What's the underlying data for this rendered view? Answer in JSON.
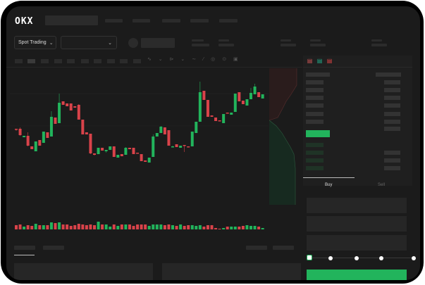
{
  "header": {
    "logo": "OKX"
  },
  "controls": {
    "market_selector": "Spot Trading",
    "pair_selector": ""
  },
  "orderbook": {
    "view_icons": [
      "orderbook-both-icon",
      "orderbook-buy-icon",
      "orderbook-sell-icon"
    ]
  },
  "trade_panel": {
    "tabs": [
      {
        "label": "Buy"
      },
      {
        "label": "Sell"
      }
    ],
    "slider_percent": 0,
    "submit_color": "#22b45c"
  },
  "colors": {
    "up": "#22b45c",
    "down": "#d9434a",
    "background": "#1b1b1b"
  },
  "chart_data": {
    "type": "candlestick",
    "candles": [
      [
        118,
        117,
        118,
        115
      ],
      [
        118,
        109,
        120,
        108
      ],
      [
        106,
        108,
        108,
        106
      ],
      [
        108,
        94,
        113,
        93
      ],
      [
        93,
        89,
        93,
        89
      ],
      [
        86,
        100,
        100,
        86
      ],
      [
        102,
        94,
        102,
        94
      ],
      [
        98,
        114,
        114,
        98
      ],
      [
        113,
        105,
        113,
        105
      ],
      [
        107,
        135,
        143,
        107
      ],
      [
        134,
        125,
        134,
        125
      ],
      [
        126,
        155,
        168,
        126
      ],
      [
        157,
        152,
        157,
        152
      ],
      [
        154,
        150,
        154,
        150
      ],
      [
        154,
        144,
        154,
        144
      ],
      [
        150,
        148,
        150,
        148
      ],
      [
        152,
        131,
        153,
        131
      ],
      [
        131,
        110,
        131,
        110
      ],
      [
        113,
        110,
        113,
        110
      ],
      [
        111,
        83,
        111,
        82
      ],
      [
        83,
        81,
        83,
        80
      ],
      [
        82,
        91,
        91,
        82
      ],
      [
        91,
        87,
        91,
        87
      ],
      [
        86,
        88,
        88,
        84
      ],
      [
        88,
        93,
        93,
        88
      ],
      [
        93,
        78,
        93,
        78
      ],
      [
        77,
        81,
        81,
        77
      ],
      [
        82,
        79,
        82,
        79
      ],
      [
        81,
        91,
        92,
        81
      ],
      [
        91,
        89,
        91,
        89
      ],
      [
        91,
        82,
        91,
        82
      ],
      [
        84,
        83,
        84,
        83
      ],
      [
        82,
        72,
        82,
        72
      ],
      [
        73,
        71,
        73,
        71
      ],
      [
        70,
        77,
        77,
        70
      ],
      [
        78,
        107,
        110,
        78
      ],
      [
        107,
        112,
        112,
        107
      ],
      [
        112,
        121,
        122,
        112
      ],
      [
        120,
        110,
        120,
        110
      ],
      [
        116,
        94,
        116,
        94
      ],
      [
        92,
        93,
        94,
        92
      ],
      [
        96,
        92,
        96,
        92
      ],
      [
        91,
        94,
        94,
        91
      ],
      [
        95,
        94,
        95,
        85
      ],
      [
        93,
        92,
        93,
        92
      ],
      [
        93,
        114,
        114,
        93
      ],
      [
        112,
        128,
        128,
        112
      ],
      [
        128,
        170,
        185,
        128
      ],
      [
        172,
        159,
        172,
        159
      ],
      [
        159,
        135,
        159,
        135
      ],
      [
        137,
        135,
        137,
        135
      ],
      [
        134,
        129,
        134,
        129
      ],
      [
        130,
        129,
        130,
        129
      ],
      [
        126,
        139,
        139,
        126
      ],
      [
        141,
        140,
        141,
        140
      ],
      [
        138,
        141,
        141,
        138
      ],
      [
        142,
        168,
        168,
        142
      ],
      [
        170,
        157,
        170,
        157
      ],
      [
        158,
        153,
        158,
        153
      ],
      [
        151,
        160,
        160,
        151
      ],
      [
        160,
        169,
        176,
        160
      ],
      [
        167,
        178,
        182,
        167
      ],
      [
        170,
        163,
        170,
        163
      ],
      [
        161,
        167,
        167,
        161
      ]
    ],
    "volume": [
      6,
      7,
      4,
      6,
      5,
      8,
      6,
      6,
      6,
      10,
      9,
      10,
      7,
      7,
      5,
      6,
      8,
      7,
      6,
      7,
      6,
      11,
      7,
      7,
      4,
      7,
      5,
      7,
      7,
      7,
      5,
      7,
      7,
      7,
      5,
      7,
      7,
      7,
      6,
      7,
      6,
      5,
      7,
      5,
      6,
      6,
      5,
      6,
      4,
      6,
      6,
      2,
      1,
      2,
      4,
      4,
      4,
      4,
      5,
      6,
      5,
      5,
      4,
      2
    ],
    "price_levels": [
      150,
      100
    ]
  }
}
